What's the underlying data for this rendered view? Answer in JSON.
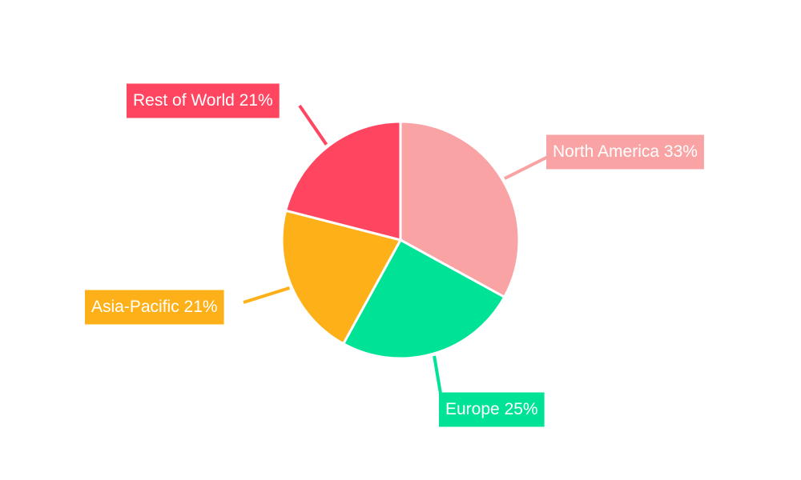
{
  "chart_data": {
    "type": "pie",
    "categories": [
      "North America",
      "Europe",
      "Asia-Pacific",
      "Rest of World"
    ],
    "values": [
      33,
      25,
      21,
      21
    ],
    "value_labels": [
      "33%",
      "25%",
      "21%",
      "21%"
    ],
    "colors": [
      "#f9a3a4",
      "#00e396",
      "#feb019",
      "#ff4560"
    ]
  }
}
